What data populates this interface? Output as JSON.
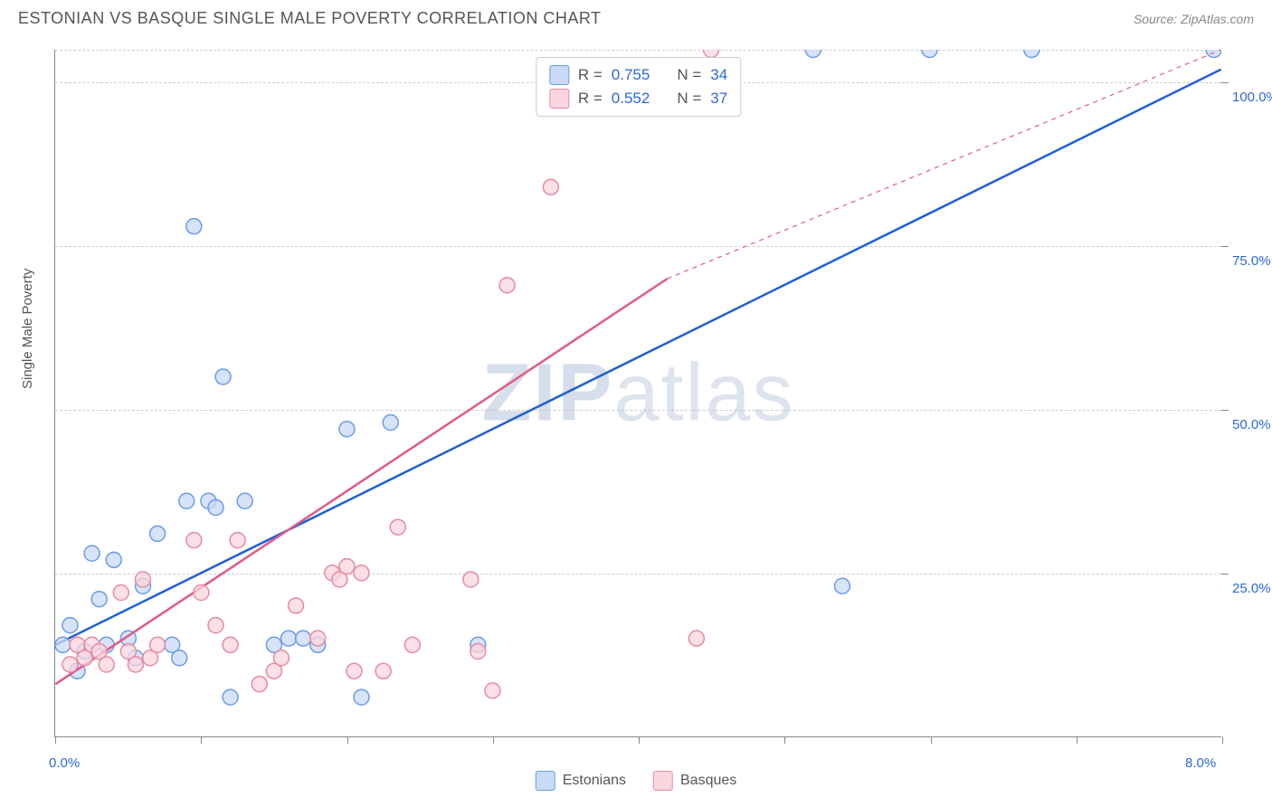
{
  "title": "ESTONIAN VS BASQUE SINGLE MALE POVERTY CORRELATION CHART",
  "source": "Source: ZipAtlas.com",
  "ylabel": "Single Male Poverty",
  "watermark_bold": "ZIP",
  "watermark_light": "atlas",
  "chart": {
    "type": "scatter",
    "background_color": "#ffffff",
    "grid_color": "#cccccc",
    "axis_color": "#888888",
    "x_min": 0.0,
    "x_max": 8.0,
    "y_min": 0.0,
    "y_max": 105.0,
    "x_ticks": [
      0.0,
      1.0,
      2.0,
      3.0,
      4.0,
      5.0,
      6.0,
      7.0,
      8.0
    ],
    "x_tick_labels_shown": {
      "0.0": "0.0%",
      "8.0": "8.0%"
    },
    "y_gridlines": [
      25.0,
      50.0,
      75.0,
      100.0,
      105.0
    ],
    "y_tick_labels": {
      "25.0": "25.0%",
      "50.0": "50.0%",
      "75.0": "75.0%",
      "100.0": "100.0%"
    },
    "marker_radius": 8.5,
    "marker_stroke_width": 1.5,
    "trend_line_width": 2.5,
    "series": [
      {
        "name": "Estonians",
        "fill": "#c9daf6",
        "stroke": "#6a9ce8",
        "trend_color": "#1f5fd6",
        "R": "0.755",
        "N": "34",
        "points": [
          [
            0.05,
            14
          ],
          [
            0.1,
            17
          ],
          [
            0.15,
            10
          ],
          [
            0.2,
            13
          ],
          [
            0.25,
            28
          ],
          [
            0.3,
            21
          ],
          [
            0.35,
            14
          ],
          [
            0.4,
            27
          ],
          [
            0.5,
            15
          ],
          [
            0.55,
            12
          ],
          [
            0.6,
            23
          ],
          [
            0.7,
            31
          ],
          [
            0.8,
            14
          ],
          [
            0.85,
            12
          ],
          [
            0.9,
            36
          ],
          [
            0.95,
            78
          ],
          [
            1.05,
            36
          ],
          [
            1.1,
            35
          ],
          [
            1.15,
            55
          ],
          [
            1.2,
            6
          ],
          [
            1.3,
            36
          ],
          [
            1.5,
            14
          ],
          [
            1.6,
            15
          ],
          [
            1.7,
            15
          ],
          [
            1.8,
            14
          ],
          [
            2.0,
            47
          ],
          [
            2.1,
            6
          ],
          [
            2.3,
            48
          ],
          [
            2.9,
            14
          ],
          [
            5.2,
            105
          ],
          [
            5.4,
            23
          ],
          [
            6.0,
            105
          ],
          [
            6.7,
            105
          ],
          [
            7.95,
            105
          ]
        ],
        "trend": {
          "x1": 0.0,
          "y1": 14.0,
          "x2": 8.0,
          "y2": 102.0,
          "dash_from_x": 8.0
        }
      },
      {
        "name": "Basques",
        "fill": "#fad6df",
        "stroke": "#e88aa0",
        "trend_color": "#e05a85",
        "R": "0.552",
        "N": "37",
        "points": [
          [
            0.1,
            11
          ],
          [
            0.15,
            14
          ],
          [
            0.2,
            12
          ],
          [
            0.25,
            14
          ],
          [
            0.3,
            13
          ],
          [
            0.35,
            11
          ],
          [
            0.45,
            22
          ],
          [
            0.5,
            13
          ],
          [
            0.55,
            11
          ],
          [
            0.6,
            24
          ],
          [
            0.65,
            12
          ],
          [
            0.7,
            14
          ],
          [
            0.95,
            30
          ],
          [
            1.0,
            22
          ],
          [
            1.1,
            17
          ],
          [
            1.2,
            14
          ],
          [
            1.25,
            30
          ],
          [
            1.4,
            8
          ],
          [
            1.5,
            10
          ],
          [
            1.55,
            12
          ],
          [
            1.65,
            20
          ],
          [
            1.8,
            15
          ],
          [
            1.9,
            25
          ],
          [
            1.95,
            24
          ],
          [
            2.0,
            26
          ],
          [
            2.05,
            10
          ],
          [
            2.1,
            25
          ],
          [
            2.25,
            10
          ],
          [
            2.35,
            32
          ],
          [
            2.45,
            14
          ],
          [
            2.85,
            24
          ],
          [
            2.9,
            13
          ],
          [
            3.0,
            7
          ],
          [
            3.1,
            69
          ],
          [
            3.4,
            84
          ],
          [
            4.4,
            15
          ],
          [
            4.5,
            105
          ]
        ],
        "trend": {
          "x1": 0.0,
          "y1": 8.0,
          "x2": 4.2,
          "y2": 70.0,
          "dash_to_x": 8.0,
          "dash_to_y": 105.0
        }
      }
    ]
  },
  "legend": {
    "stats_label_R": "R =",
    "stats_label_N": "N =",
    "bottom_items": [
      "Estonians",
      "Basques"
    ]
  }
}
